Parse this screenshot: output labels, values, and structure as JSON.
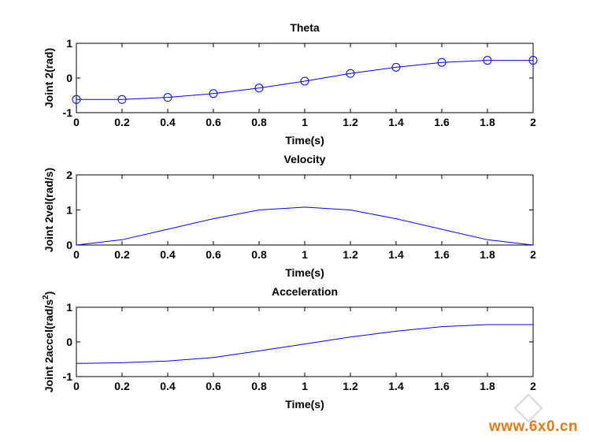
{
  "chart_data": [
    {
      "type": "line",
      "title": "Theta",
      "xlabel": "Time(s)",
      "ylabel": "Joint 2(rad)",
      "xlim": [
        0,
        2
      ],
      "ylim": [
        -1,
        1
      ],
      "xticks": [
        "0",
        "0.2",
        "0.4",
        "0.6",
        "0.8",
        "1",
        "1.2",
        "1.4",
        "1.6",
        "1.8",
        "2"
      ],
      "yticks": [
        "-1",
        "0",
        "1"
      ],
      "markers": true,
      "series": [
        {
          "x": [
            0,
            0.2,
            0.4,
            0.6,
            0.8,
            1.0,
            1.2,
            1.4,
            1.6,
            1.8,
            2.0
          ],
          "values": [
            -0.62,
            -0.62,
            -0.56,
            -0.45,
            -0.29,
            -0.09,
            0.13,
            0.31,
            0.45,
            0.51,
            0.51
          ]
        }
      ]
    },
    {
      "type": "line",
      "title": "Velocity",
      "xlabel": "Time(s)",
      "ylabel": "Joint 2vel(rad/s)",
      "xlim": [
        0,
        2
      ],
      "ylim": [
        0,
        2
      ],
      "xticks": [
        "0",
        "0.2",
        "0.4",
        "0.6",
        "0.8",
        "1",
        "1.2",
        "1.4",
        "1.6",
        "1.8",
        "2"
      ],
      "yticks": [
        "0",
        "1",
        "2"
      ],
      "markers": false,
      "series": [
        {
          "x": [
            0,
            0.2,
            0.4,
            0.6,
            0.8,
            1.0,
            1.2,
            1.4,
            1.6,
            1.8,
            2.0
          ],
          "values": [
            0.0,
            0.15,
            0.45,
            0.75,
            1.0,
            1.08,
            1.0,
            0.75,
            0.45,
            0.15,
            0.0
          ]
        }
      ]
    },
    {
      "type": "line",
      "title": "Acceleration",
      "xlabel": "Time(s)",
      "ylabel": "Joint 2accel(rad/s",
      "ylabel_superscript": "2",
      "ylabel_suffix": ")",
      "xlim": [
        0,
        2
      ],
      "ylim": [
        -1,
        1
      ],
      "xticks": [
        "0",
        "0.2",
        "0.4",
        "0.6",
        "0.8",
        "1",
        "1.2",
        "1.4",
        "1.6",
        "1.8",
        "2"
      ],
      "yticks": [
        "-1",
        "0",
        "1"
      ],
      "markers": false,
      "series": [
        {
          "x": [
            0,
            0.2,
            0.4,
            0.6,
            0.8,
            1.0,
            1.2,
            1.4,
            1.6,
            1.8,
            2.0
          ],
          "values": [
            -0.62,
            -0.6,
            -0.55,
            -0.45,
            -0.26,
            -0.06,
            0.14,
            0.31,
            0.44,
            0.5,
            0.5
          ]
        }
      ]
    }
  ],
  "colors": {
    "line": "#0000ff",
    "axes": "#000000",
    "watermark": "#e87a12"
  },
  "watermark": "www.6x0.cn"
}
